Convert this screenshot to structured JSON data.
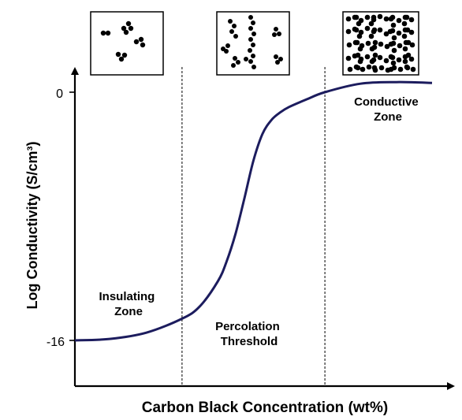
{
  "chart_data": {
    "type": "line",
    "title": "",
    "xlabel": "Carbon Black Concentration (wt%)",
    "ylabel": "Log Conductivity (S/cm³)",
    "yticks": [
      "0",
      "-16"
    ],
    "xlim": [
      0,
      100
    ],
    "ylim": [
      -20,
      1
    ],
    "series": [
      {
        "x": [
          0,
          10,
          20,
          30,
          35,
          40,
          42.5,
          45,
          47.5,
          50,
          52.5,
          55,
          57.5,
          60,
          65,
          70,
          80,
          90,
          100
        ],
        "y": [
          -16,
          -15.9,
          -15.5,
          -14.6,
          -13.8,
          -12.2,
          -10.9,
          -9.1,
          -6.8,
          -4.4,
          -2.7,
          -1.8,
          -1.3,
          -0.95,
          -0.45,
          0,
          0.55,
          0.65,
          0.6
        ],
        "color": "#1c1c5e"
      }
    ],
    "boundaries_x": [
      30,
      70
    ],
    "annotations": [
      {
        "line1": "Insulating",
        "line2": "Zone"
      },
      {
        "line1": "Percolation",
        "line2": "Threshold"
      },
      {
        "line1": "Conductive",
        "line2": "Zone"
      }
    ],
    "insets": [
      "isolated particle clusters",
      "partially connected particle chains",
      "fully connected particle network"
    ]
  }
}
